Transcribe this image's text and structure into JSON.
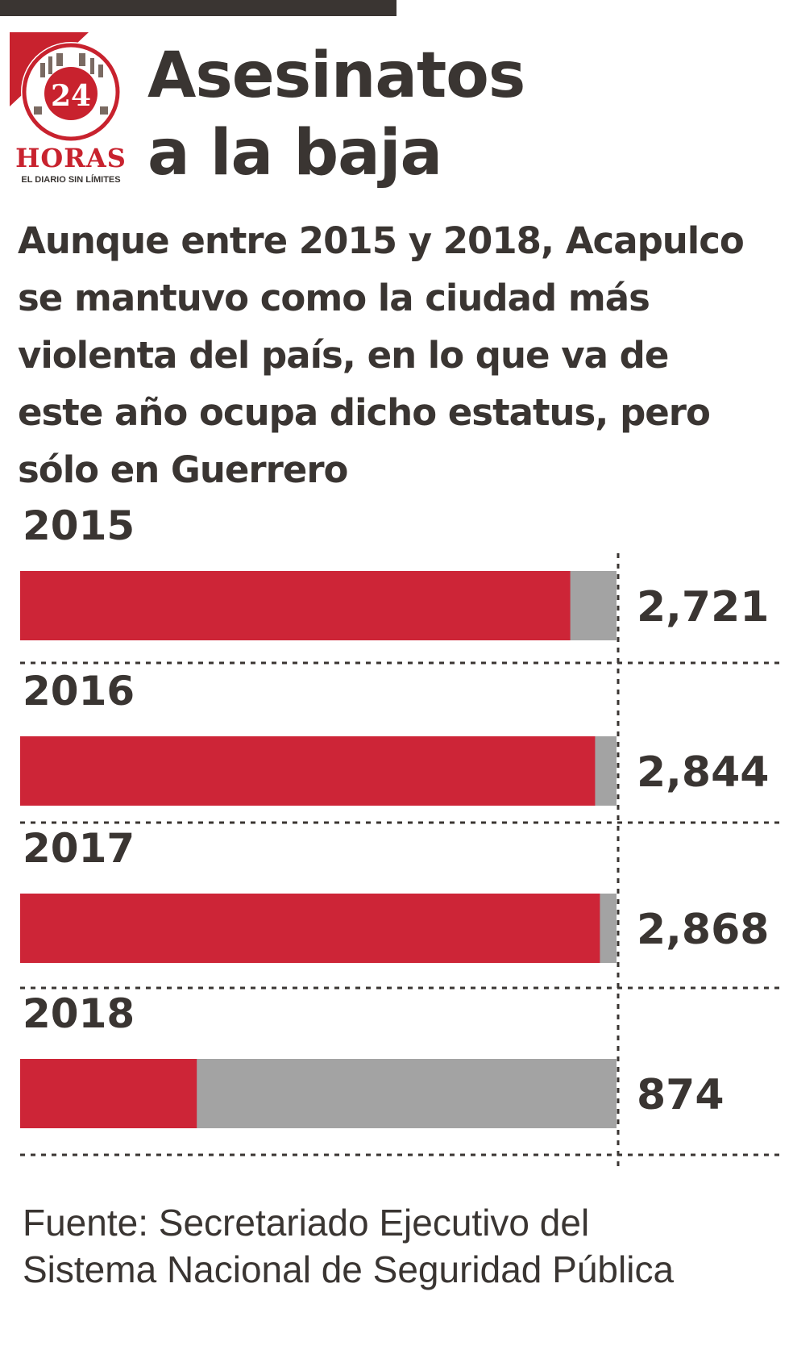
{
  "header": {
    "logo": {
      "number": "24",
      "wordmark": "HORAS",
      "tagline": "EL DIARIO SIN LÍMITES",
      "color": "#c8222e"
    },
    "title_lines": [
      "Asesinatos",
      "a la baja"
    ],
    "subtitle_lines": [
      "Aunque entre 2015 y 2018, Acapulco",
      "se mantuvo como la ciudad más",
      "violenta del país, en lo que va de",
      "este año ocupa dicho estatus, pero",
      "sólo en Guerrero"
    ]
  },
  "chart_data": {
    "type": "bar",
    "orientation": "horizontal",
    "categories": [
      "2015",
      "2016",
      "2017",
      "2018"
    ],
    "values": [
      2721,
      2844,
      2868,
      874
    ],
    "value_labels": [
      "2,721",
      "2,844",
      "2,868",
      "874"
    ],
    "xlim": [
      0,
      2950
    ],
    "grid": false,
    "colors": {
      "bar": "#cd2537",
      "track": "#a3a3a3",
      "text": "#3a3532"
    }
  },
  "footer": {
    "source_lines": [
      "Fuente: Secretariado Ejecutivo del",
      "Sistema Nacional de Seguridad Pública"
    ]
  }
}
